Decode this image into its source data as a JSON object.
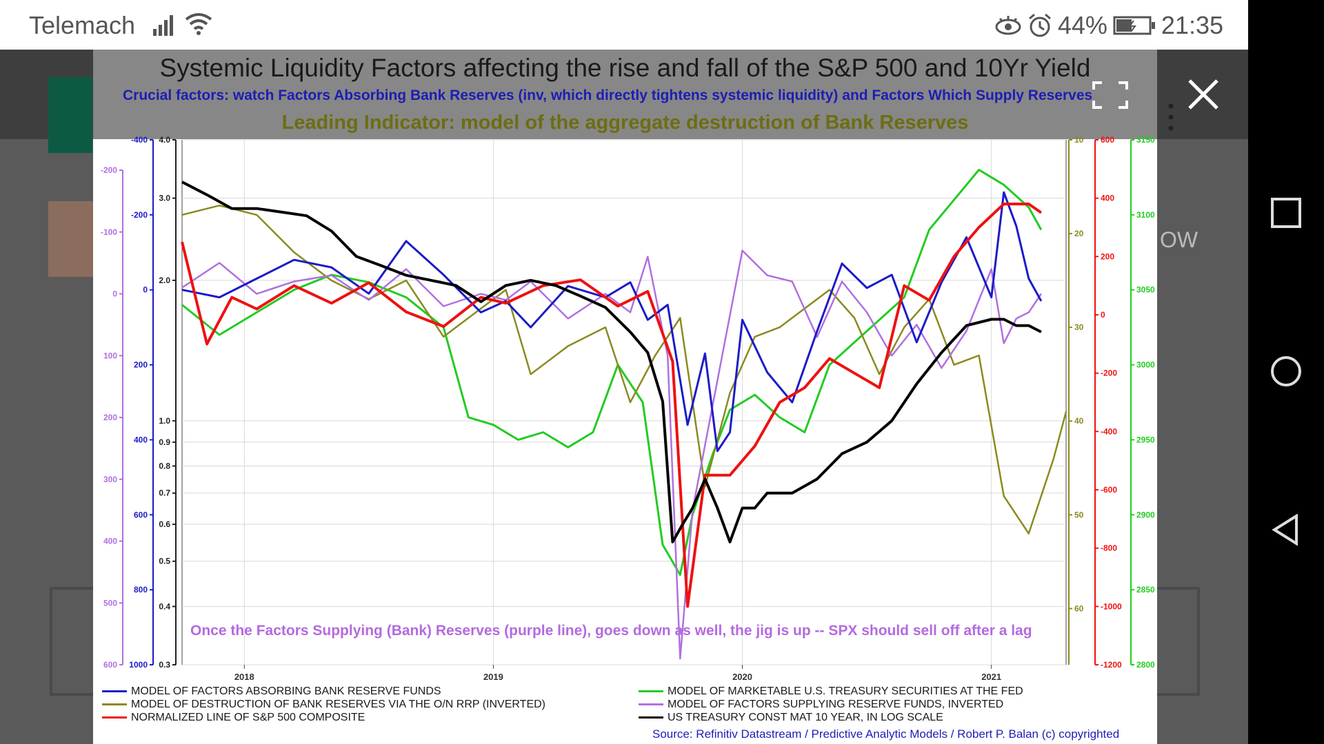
{
  "status": {
    "carrier": "Telemach",
    "battery": "44%",
    "time": "21:35"
  },
  "colors": {
    "blue": "#1b1bc8",
    "olive": "#8a8a1f",
    "red": "#ee1111",
    "green": "#22cc22",
    "purple": "#b070e0",
    "black": "#000000"
  },
  "background_text": "OW",
  "chart_data": {
    "type": "line",
    "title": "Systemic Liquidity Factors affecting the rise and fall of the S&P 500 and 10Yr Yield",
    "subtitle": "Crucial factors: watch Factors Absorbing Bank Reserves (inv, which directly tightens systemic liquidity) and Factors Which Supply Reserves",
    "subtitle2": "Leading Indicator: model of the aggregate destruction of Bank Reserves",
    "annotation": "Once the Factors Supplying (Bank) Reserves (purple line), goes down as well, the jig is up -- SPX should sell off after a lag",
    "source": "Source: Refinitiv Datastream / Predictive Analytic Models / Robert P. Balan (c)  copyrighted",
    "x_ticks": [
      "2018",
      "2019",
      "2020",
      "2021"
    ],
    "x_range": [
      2017.75,
      2021.3
    ],
    "grid": true,
    "left_axes": [
      {
        "color": "#b070e0",
        "ticks": [
          "-200",
          "-100",
          "0",
          "100",
          "200",
          "300",
          "400",
          "500",
          "600"
        ]
      },
      {
        "color": "#1b1bc8",
        "ticks": [
          "-400",
          "-200",
          "0",
          "200",
          "400",
          "600",
          "800",
          "1000"
        ]
      },
      {
        "color": "#222222",
        "ticks": [
          "4.0",
          "3.0",
          "2.0",
          "1.0",
          "0.9",
          "0.8",
          "0.7",
          "0.6",
          "0.5",
          "0.4",
          "0.3"
        ],
        "scale": "log"
      }
    ],
    "right_axes": [
      {
        "color": "#8a8a1f",
        "ticks": [
          "10",
          "20",
          "30",
          "40",
          "50",
          "60"
        ]
      },
      {
        "color": "#ee1111",
        "ticks": [
          "600",
          "400",
          "200",
          "0",
          "-200",
          "-400",
          "-600",
          "-800",
          "-1000",
          "-1200"
        ]
      },
      {
        "color": "#22cc22",
        "ticks": [
          "3150",
          "3100",
          "3050",
          "3000",
          "2950",
          "2900",
          "2850",
          "2800"
        ]
      }
    ],
    "legend_placement": "bottom",
    "series": [
      {
        "name": "MODEL OF FACTORS ABSORBING BANK RESERVE FUNDS",
        "color": "#1b1bc8",
        "x": [
          2017.75,
          2017.9,
          2018.05,
          2018.2,
          2018.35,
          2018.5,
          2018.65,
          2018.8,
          2018.95,
          2019.05,
          2019.15,
          2019.3,
          2019.45,
          2019.55,
          2019.62,
          2019.7,
          2019.78,
          2019.85,
          2019.9,
          2019.95,
          2020.0,
          2020.1,
          2020.2,
          2020.3,
          2020.4,
          2020.5,
          2020.6,
          2020.7,
          2020.8,
          2020.9,
          2021.0,
          2021.05,
          2021.1,
          2021.15,
          2021.2
        ],
        "y": [
          0,
          20,
          -30,
          -80,
          -60,
          10,
          -130,
          -40,
          60,
          30,
          100,
          -10,
          20,
          -20,
          80,
          40,
          360,
          170,
          430,
          380,
          80,
          220,
          300,
          110,
          -70,
          -5,
          -40,
          140,
          -20,
          -140,
          20,
          -260,
          -170,
          -30,
          30
        ]
      },
      {
        "name": "MODEL OF DESTRUCTION OF BANK RESERVES VIA THE O/N RRP (INVERTED)",
        "color": "#8a8a1f",
        "x": [
          2017.75,
          2017.9,
          2018.05,
          2018.2,
          2018.35,
          2018.5,
          2018.65,
          2018.8,
          2018.95,
          2019.05,
          2019.15,
          2019.3,
          2019.45,
          2019.55,
          2019.65,
          2019.75,
          2019.85,
          2019.95,
          2020.05,
          2020.15,
          2020.25,
          2020.35,
          2020.45,
          2020.55,
          2020.65,
          2020.75,
          2020.85,
          2020.95,
          2021.05,
          2021.15,
          2021.25,
          2021.3
        ],
        "y": [
          18,
          17,
          18,
          22,
          25,
          27,
          25,
          31,
          28,
          26,
          35,
          32,
          30,
          38,
          33,
          29,
          47,
          37,
          31,
          30,
          28,
          26,
          29,
          35,
          30,
          27,
          34,
          33,
          48,
          52,
          44,
          39
        ]
      },
      {
        "name": "NORMALIZED LINE OF S&P 500 COMPOSITE",
        "color": "#ee1111",
        "x": [
          2017.75,
          2017.85,
          2017.95,
          2018.05,
          2018.2,
          2018.35,
          2018.5,
          2018.65,
          2018.8,
          2018.95,
          2019.05,
          2019.2,
          2019.35,
          2019.5,
          2019.62,
          2019.72,
          2019.78,
          2019.85,
          2019.95,
          2020.05,
          2020.15,
          2020.25,
          2020.35,
          2020.45,
          2020.55,
          2020.65,
          2020.75,
          2020.85,
          2020.95,
          2021.05,
          2021.15,
          2021.2
        ],
        "y": [
          250,
          -100,
          60,
          20,
          100,
          40,
          110,
          10,
          -40,
          60,
          40,
          100,
          120,
          30,
          80,
          -160,
          -1000,
          -550,
          -550,
          -450,
          -300,
          -250,
          -150,
          -200,
          -250,
          100,
          50,
          200,
          300,
          380,
          380,
          350
        ]
      },
      {
        "name": "MODEL OF MARKETABLE U.S. TREASURY SECURITIES AT THE FED",
        "color": "#22cc22",
        "x": [
          2017.75,
          2017.9,
          2018.05,
          2018.2,
          2018.35,
          2018.5,
          2018.65,
          2018.8,
          2018.9,
          2019.0,
          2019.1,
          2019.2,
          2019.3,
          2019.4,
          2019.5,
          2019.6,
          2019.68,
          2019.75,
          2019.8,
          2019.88,
          2019.95,
          2020.05,
          2020.15,
          2020.25,
          2020.35,
          2020.45,
          2020.55,
          2020.65,
          2020.75,
          2020.85,
          2020.95,
          2021.05,
          2021.15,
          2021.2
        ],
        "y": [
          3040,
          3020,
          3035,
          3050,
          3060,
          3055,
          3045,
          3025,
          2965,
          2960,
          2950,
          2955,
          2945,
          2955,
          3000,
          2975,
          2880,
          2860,
          2900,
          2940,
          2970,
          2980,
          2965,
          2955,
          3000,
          3015,
          3030,
          3045,
          3090,
          3110,
          3130,
          3120,
          3105,
          3090
        ]
      },
      {
        "name": "MODEL OF FACTORS SUPPLYING RESERVE FUNDS, INVERTED",
        "color": "#b070e0",
        "x": [
          2017.75,
          2017.9,
          2018.05,
          2018.2,
          2018.35,
          2018.5,
          2018.65,
          2018.8,
          2018.95,
          2019.05,
          2019.15,
          2019.3,
          2019.45,
          2019.55,
          2019.62,
          2019.7,
          2019.75,
          2019.8,
          2019.9,
          2020.0,
          2020.1,
          2020.2,
          2020.3,
          2020.4,
          2020.5,
          2020.6,
          2020.7,
          2020.8,
          2020.9,
          2021.0,
          2021.05,
          2021.1,
          2021.15,
          2021.2
        ],
        "y": [
          -10,
          -50,
          0,
          -20,
          -30,
          10,
          -40,
          20,
          0,
          10,
          -20,
          40,
          0,
          30,
          -60,
          100,
          590,
          350,
          140,
          -70,
          -30,
          -20,
          70,
          -20,
          30,
          100,
          50,
          120,
          60,
          -40,
          80,
          40,
          30,
          0
        ]
      },
      {
        "name": "US TREASURY CONST MAT 10 YEAR, IN LOG SCALE",
        "color": "#000000",
        "x": [
          2017.75,
          2017.85,
          2017.95,
          2018.05,
          2018.15,
          2018.25,
          2018.35,
          2018.45,
          2018.55,
          2018.65,
          2018.75,
          2018.85,
          2018.95,
          2019.05,
          2019.15,
          2019.25,
          2019.35,
          2019.45,
          2019.55,
          2019.62,
          2019.68,
          2019.72,
          2019.76,
          2019.8,
          2019.85,
          2019.9,
          2019.95,
          2020.0,
          2020.05,
          2020.1,
          2020.2,
          2020.3,
          2020.4,
          2020.5,
          2020.6,
          2020.7,
          2020.8,
          2020.9,
          2021.0,
          2021.05,
          2021.1,
          2021.15,
          2021.2
        ],
        "y": [
          3.25,
          3.05,
          2.85,
          2.85,
          2.8,
          2.75,
          2.55,
          2.25,
          2.15,
          2.05,
          2.0,
          1.95,
          1.8,
          1.95,
          2.0,
          1.95,
          1.85,
          1.75,
          1.55,
          1.4,
          1.1,
          0.55,
          0.6,
          0.65,
          0.75,
          0.65,
          0.55,
          0.65,
          0.65,
          0.7,
          0.7,
          0.75,
          0.85,
          0.9,
          1.0,
          1.2,
          1.4,
          1.6,
          1.65,
          1.65,
          1.6,
          1.6,
          1.55
        ]
      }
    ]
  }
}
